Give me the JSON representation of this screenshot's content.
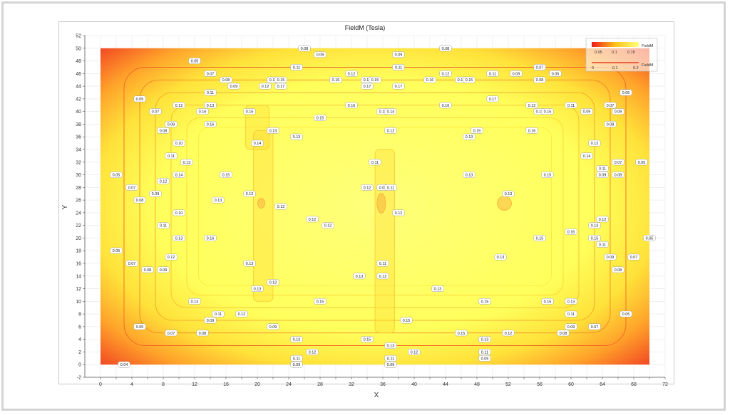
{
  "chart_data": {
    "type": "heatmap",
    "title": "FieldM (Tesla)",
    "xlabel": "X",
    "ylabel": "Y",
    "xlim": [
      -2,
      72
    ],
    "ylim": [
      -2,
      52
    ],
    "x_ticks": [
      0,
      2,
      4,
      6,
      8,
      10,
      12,
      14,
      16,
      18,
      20,
      22,
      24,
      26,
      28,
      30,
      32,
      34,
      36,
      38,
      40,
      42,
      44,
      46,
      48,
      50,
      52,
      54,
      56,
      58,
      60,
      62,
      64,
      66,
      68,
      70,
      72
    ],
    "y_ticks": [
      -2,
      0,
      2,
      4,
      6,
      8,
      10,
      12,
      14,
      16,
      18,
      20,
      22,
      24,
      26,
      28,
      30,
      32,
      34,
      36,
      38,
      40,
      42,
      44,
      46,
      48,
      50,
      52
    ],
    "x_tick_labels": [
      "0",
      "4",
      "8",
      "12",
      "16",
      "20",
      "24",
      "28",
      "32",
      "36",
      "40",
      "44",
      "48",
      "52",
      "56",
      "60",
      "64",
      "68",
      "72"
    ],
    "y_tick_labels": [
      "-2",
      "0",
      "2",
      "4",
      "6",
      "8",
      "10",
      "12",
      "14",
      "16",
      "18",
      "20",
      "22",
      "24",
      "26",
      "28",
      "30",
      "32",
      "34",
      "36",
      "38",
      "40",
      "42",
      "44",
      "46",
      "48",
      "50",
      "52"
    ],
    "data_extent": {
      "x": [
        0,
        70
      ],
      "y": [
        0,
        50
      ]
    },
    "grid": true,
    "colormap": [
      "#ee1a1a",
      "#ffc21a",
      "#ffff7a"
    ],
    "legend": {
      "placement": "top-right",
      "entries": [
        {
          "label": "FieldM",
          "ticks": [
            "0.05",
            "0.1",
            "0.15"
          ]
        },
        {
          "label": "FieldM",
          "ticks": [
            "0",
            "0.1",
            "0.2"
          ]
        }
      ]
    },
    "contour_labels": [
      {
        "x": 12,
        "y": 48,
        "text": "0.05"
      },
      {
        "x": 14,
        "y": 46,
        "text": "0.07"
      },
      {
        "x": 16,
        "y": 45,
        "text": "0.08"
      },
      {
        "x": 17,
        "y": 44,
        "text": "0.09"
      },
      {
        "x": 26,
        "y": 50,
        "text": "0.08"
      },
      {
        "x": 28,
        "y": 49,
        "text": "0.09"
      },
      {
        "x": 25,
        "y": 47,
        "text": "0.11"
      },
      {
        "x": 32,
        "y": 46,
        "text": "0.12"
      },
      {
        "x": 22,
        "y": 45,
        "text": "0.14"
      },
      {
        "x": 23,
        "y": 45,
        "text": "0.15"
      },
      {
        "x": 30,
        "y": 45,
        "text": "0.16"
      },
      {
        "x": 34,
        "y": 45,
        "text": "0.14"
      },
      {
        "x": 35,
        "y": 45,
        "text": "0.15"
      },
      {
        "x": 38,
        "y": 49,
        "text": "0.09"
      },
      {
        "x": 38,
        "y": 47,
        "text": "0.11"
      },
      {
        "x": 44,
        "y": 50,
        "text": "0.08"
      },
      {
        "x": 44,
        "y": 46,
        "text": "0.12"
      },
      {
        "x": 46,
        "y": 45,
        "text": "0.14"
      },
      {
        "x": 47,
        "y": 45,
        "text": "0.15"
      },
      {
        "x": 42,
        "y": 45,
        "text": "0.16"
      },
      {
        "x": 50,
        "y": 46,
        "text": "0.11"
      },
      {
        "x": 53,
        "y": 46,
        "text": "0.09"
      },
      {
        "x": 56,
        "y": 45,
        "text": "0.08"
      },
      {
        "x": 56,
        "y": 47,
        "text": "0.07"
      },
      {
        "x": 58,
        "y": 46,
        "text": "0.05"
      },
      {
        "x": 21,
        "y": 44,
        "text": "0.12"
      },
      {
        "x": 23,
        "y": 44,
        "text": "0.17"
      },
      {
        "x": 34,
        "y": 44,
        "text": "0.17"
      },
      {
        "x": 38,
        "y": 44,
        "text": "0.17"
      },
      {
        "x": 14,
        "y": 43,
        "text": "0.11"
      },
      {
        "x": 14,
        "y": 41,
        "text": "0.13"
      },
      {
        "x": 13,
        "y": 40,
        "text": "0.16"
      },
      {
        "x": 19,
        "y": 40,
        "text": "0.15"
      },
      {
        "x": 32,
        "y": 41,
        "text": "0.16"
      },
      {
        "x": 36,
        "y": 40,
        "text": "0.15"
      },
      {
        "x": 37,
        "y": 40,
        "text": "0.14"
      },
      {
        "x": 44,
        "y": 41,
        "text": "0.16"
      },
      {
        "x": 50,
        "y": 42,
        "text": "0.17"
      },
      {
        "x": 55,
        "y": 41,
        "text": "0.12"
      },
      {
        "x": 56,
        "y": 40,
        "text": "0.13"
      },
      {
        "x": 57,
        "y": 40,
        "text": "0.15"
      },
      {
        "x": 60,
        "y": 41,
        "text": "0.11"
      },
      {
        "x": 62,
        "y": 40,
        "text": "0.09"
      },
      {
        "x": 65,
        "y": 41,
        "text": "0.07"
      },
      {
        "x": 67,
        "y": 43,
        "text": "0.05"
      },
      {
        "x": 5,
        "y": 42,
        "text": "0.05"
      },
      {
        "x": 7,
        "y": 40,
        "text": "0.07"
      },
      {
        "x": 10,
        "y": 41,
        "text": "0.12"
      },
      {
        "x": 9,
        "y": 38,
        "text": "0.09"
      },
      {
        "x": 8,
        "y": 37,
        "text": "0.08"
      },
      {
        "x": 14,
        "y": 38,
        "text": "0.16"
      },
      {
        "x": 28,
        "y": 39,
        "text": "0.15"
      },
      {
        "x": 25,
        "y": 36,
        "text": "0.13"
      },
      {
        "x": 37,
        "y": 37,
        "text": "0.12"
      },
      {
        "x": 48,
        "y": 37,
        "text": "0.15"
      },
      {
        "x": 47,
        "y": 36,
        "text": "0.13"
      },
      {
        "x": 55,
        "y": 37,
        "text": "0.16"
      },
      {
        "x": 65,
        "y": 38,
        "text": "0.08"
      },
      {
        "x": 66,
        "y": 40,
        "text": "0.09"
      },
      {
        "x": 10,
        "y": 35,
        "text": "0.10"
      },
      {
        "x": 9,
        "y": 33,
        "text": "0.11"
      },
      {
        "x": 11,
        "y": 32,
        "text": "0.13"
      },
      {
        "x": 22,
        "y": 37,
        "text": "0.13"
      },
      {
        "x": 20,
        "y": 35,
        "text": "0.14"
      },
      {
        "x": 35,
        "y": 32,
        "text": "0.11"
      },
      {
        "x": 34,
        "y": 28,
        "text": "0.12"
      },
      {
        "x": 36,
        "y": 28,
        "text": "0.09"
      },
      {
        "x": 37,
        "y": 28,
        "text": "0.11"
      },
      {
        "x": 47,
        "y": 30,
        "text": "0.13"
      },
      {
        "x": 52,
        "y": 27,
        "text": "0.13"
      },
      {
        "x": 57,
        "y": 30,
        "text": "0.15"
      },
      {
        "x": 62,
        "y": 33,
        "text": "0.14"
      },
      {
        "x": 63,
        "y": 35,
        "text": "0.12"
      },
      {
        "x": 64,
        "y": 31,
        "text": "0.11"
      },
      {
        "x": 64,
        "y": 30,
        "text": "0.09"
      },
      {
        "x": 66,
        "y": 30,
        "text": "0.08"
      },
      {
        "x": 66,
        "y": 32,
        "text": "0.07"
      },
      {
        "x": 69,
        "y": 32,
        "text": "0.05"
      },
      {
        "x": 2,
        "y": 30,
        "text": "0.05"
      },
      {
        "x": 4,
        "y": 28,
        "text": "0.07"
      },
      {
        "x": 5,
        "y": 26,
        "text": "0.08"
      },
      {
        "x": 7,
        "y": 27,
        "text": "0.09"
      },
      {
        "x": 8,
        "y": 29,
        "text": "0.12"
      },
      {
        "x": 10,
        "y": 30,
        "text": "0.14"
      },
      {
        "x": 16,
        "y": 30,
        "text": "0.15"
      },
      {
        "x": 15,
        "y": 26,
        "text": "0.13"
      },
      {
        "x": 19,
        "y": 27,
        "text": "0.12"
      },
      {
        "x": 23,
        "y": 25,
        "text": "0.12"
      },
      {
        "x": 27,
        "y": 23,
        "text": "0.12"
      },
      {
        "x": 29,
        "y": 22,
        "text": "0.12"
      },
      {
        "x": 38,
        "y": 24,
        "text": "0.12"
      },
      {
        "x": 10,
        "y": 24,
        "text": "0.10"
      },
      {
        "x": 8,
        "y": 22,
        "text": "0.11"
      },
      {
        "x": 10,
        "y": 20,
        "text": "0.13"
      },
      {
        "x": 14,
        "y": 20,
        "text": "0.16"
      },
      {
        "x": 9,
        "y": 17,
        "text": "0.12"
      },
      {
        "x": 8,
        "y": 15,
        "text": "0.09"
      },
      {
        "x": 6,
        "y": 15,
        "text": "0.08"
      },
      {
        "x": 4,
        "y": 16,
        "text": "0.07"
      },
      {
        "x": 2,
        "y": 18,
        "text": "0.05"
      },
      {
        "x": 19,
        "y": 16,
        "text": "0.13"
      },
      {
        "x": 20,
        "y": 12,
        "text": "0.13"
      },
      {
        "x": 22,
        "y": 13,
        "text": "0.12"
      },
      {
        "x": 33,
        "y": 14,
        "text": "0.13"
      },
      {
        "x": 36,
        "y": 16,
        "text": "0.11"
      },
      {
        "x": 36,
        "y": 14,
        "text": "0.12"
      },
      {
        "x": 51,
        "y": 17,
        "text": "0.13"
      },
      {
        "x": 56,
        "y": 20,
        "text": "0.15"
      },
      {
        "x": 60,
        "y": 21,
        "text": "0.16"
      },
      {
        "x": 63,
        "y": 20,
        "text": "0.15"
      },
      {
        "x": 63,
        "y": 22,
        "text": "0.13"
      },
      {
        "x": 64,
        "y": 23,
        "text": "0.12"
      },
      {
        "x": 64,
        "y": 19,
        "text": "0.11"
      },
      {
        "x": 65,
        "y": 17,
        "text": "0.09"
      },
      {
        "x": 66,
        "y": 15,
        "text": "0.08"
      },
      {
        "x": 68,
        "y": 17,
        "text": "0.07"
      },
      {
        "x": 70,
        "y": 20,
        "text": "0.05"
      },
      {
        "x": 12,
        "y": 10,
        "text": "0.13"
      },
      {
        "x": 15,
        "y": 8,
        "text": "0.11"
      },
      {
        "x": 14,
        "y": 7,
        "text": "0.09"
      },
      {
        "x": 18,
        "y": 8,
        "text": "0.12"
      },
      {
        "x": 28,
        "y": 10,
        "text": "0.15"
      },
      {
        "x": 39,
        "y": 7,
        "text": "0.15"
      },
      {
        "x": 43,
        "y": 12,
        "text": "0.13"
      },
      {
        "x": 49,
        "y": 10,
        "text": "0.15"
      },
      {
        "x": 57,
        "y": 10,
        "text": "0.15"
      },
      {
        "x": 60,
        "y": 10,
        "text": "0.13"
      },
      {
        "x": 60,
        "y": 8,
        "text": "0.11"
      },
      {
        "x": 60,
        "y": 6,
        "text": "0.09"
      },
      {
        "x": 59,
        "y": 5,
        "text": "0.08"
      },
      {
        "x": 63,
        "y": 6,
        "text": "0.07"
      },
      {
        "x": 67,
        "y": 8,
        "text": "0.05"
      },
      {
        "x": 5,
        "y": 6,
        "text": "0.05"
      },
      {
        "x": 9,
        "y": 5,
        "text": "0.07"
      },
      {
        "x": 13,
        "y": 5,
        "text": "0.08"
      },
      {
        "x": 22,
        "y": 6,
        "text": "0.09"
      },
      {
        "x": 25,
        "y": 4,
        "text": "0.13"
      },
      {
        "x": 27,
        "y": 2,
        "text": "0.12"
      },
      {
        "x": 25,
        "y": 1,
        "text": "0.11"
      },
      {
        "x": 25,
        "y": 0,
        "text": "0.09"
      },
      {
        "x": 34,
        "y": 4,
        "text": "0.15"
      },
      {
        "x": 37,
        "y": 3,
        "text": "0.13"
      },
      {
        "x": 40,
        "y": 2,
        "text": "0.12"
      },
      {
        "x": 37,
        "y": 1,
        "text": "0.11"
      },
      {
        "x": 37,
        "y": 0,
        "text": "0.09"
      },
      {
        "x": 46,
        "y": 5,
        "text": "0.15"
      },
      {
        "x": 49,
        "y": 4,
        "text": "0.13"
      },
      {
        "x": 52,
        "y": 5,
        "text": "0.12"
      },
      {
        "x": 49,
        "y": 2,
        "text": "0.11"
      },
      {
        "x": 49,
        "y": 1,
        "text": "0.09"
      },
      {
        "x": 3,
        "y": 0,
        "text": "0.04"
      }
    ]
  }
}
